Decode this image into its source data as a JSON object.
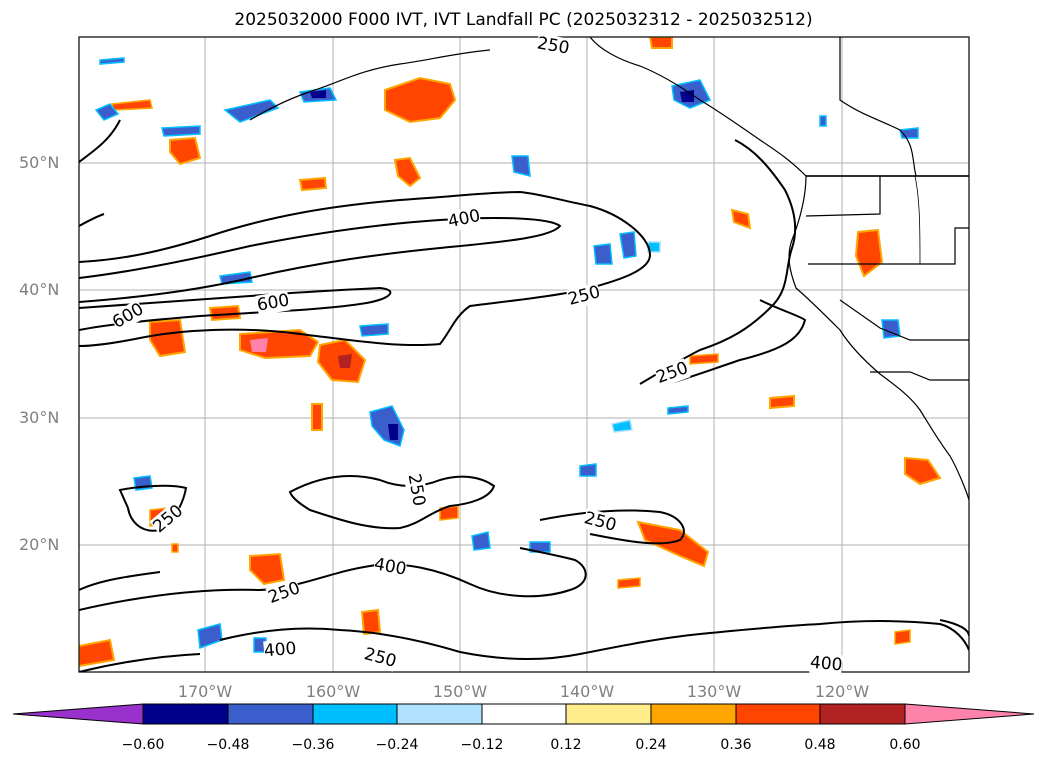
{
  "title": "2025032000 F000 IVT, IVT Landfall PC (2025032312 - 2025032512)",
  "lat_labels": [
    "50°N",
    "40°N",
    "30°N",
    "20°N"
  ],
  "lon_labels": [
    "170°W",
    "160°W",
    "150°W",
    "140°W",
    "130°W",
    "120°W"
  ],
  "contour_labels": [
    "250",
    "400",
    "600",
    "600",
    "250",
    "250",
    "250",
    "250",
    "400",
    "250",
    "400",
    "250",
    "250",
    "400"
  ],
  "colorbar": {
    "tick_labels": [
      "−0.60",
      "−0.48",
      "−0.36",
      "−0.24",
      "−0.12",
      "0.12",
      "0.24",
      "0.36",
      "0.48",
      "0.60"
    ],
    "colors": [
      "#9932cc",
      "#00008b",
      "#3a5fcd",
      "#00bfff",
      "#b0e2ff",
      "#ffffff",
      "#ffec8b",
      "#ffa500",
      "#ff4500",
      "#b22222",
      "#ff82ab"
    ]
  }
}
